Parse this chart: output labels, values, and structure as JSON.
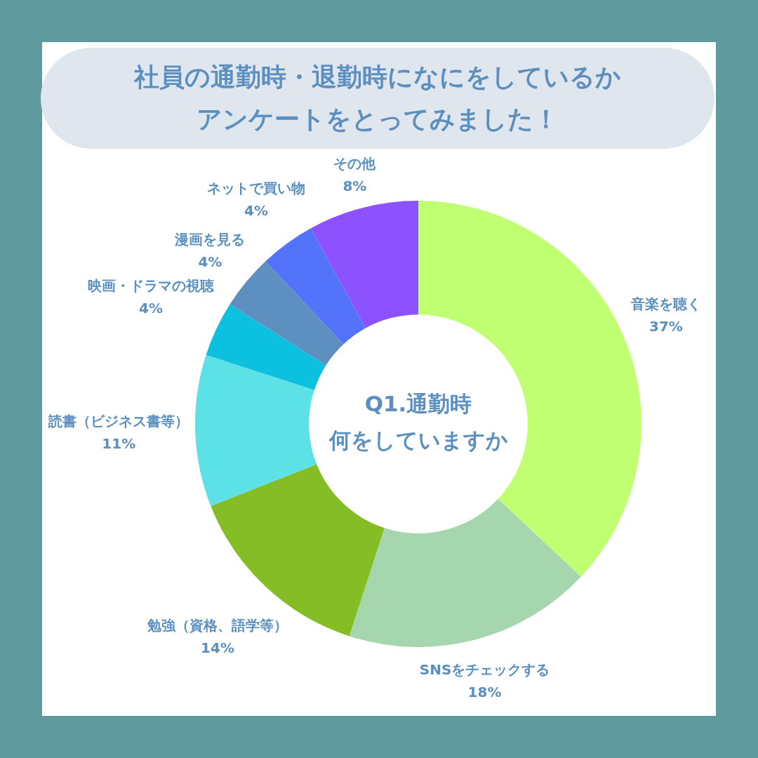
{
  "chart_data": {
    "type": "donut",
    "title": "社員の通勤時・退勤時になにをしているかアンケートをとってみました！",
    "categories": [
      "音楽を聴く",
      "SNSをチェックする",
      "勉強（資格、語学等）",
      "読書（ビジネス書等）",
      "映画・ドラマの視聴",
      "漫画を見る",
      "ネットで買い物",
      "その他"
    ],
    "values": [
      37,
      18,
      14,
      11,
      4,
      4,
      4,
      8
    ],
    "value_labels": [
      "37%",
      "18%",
      "14%",
      "11%",
      "4%",
      "4%",
      "4%",
      "8%"
    ],
    "colors": [
      "#c1ff72",
      "#a6d6ae",
      "#84bd25",
      "#5ce1e6",
      "#0cc0df",
      "#5d90c0",
      "#5473fb",
      "#8c52ff"
    ],
    "annotations": [
      "Q1.通勤時",
      "何をしていますか"
    ]
  }
}
